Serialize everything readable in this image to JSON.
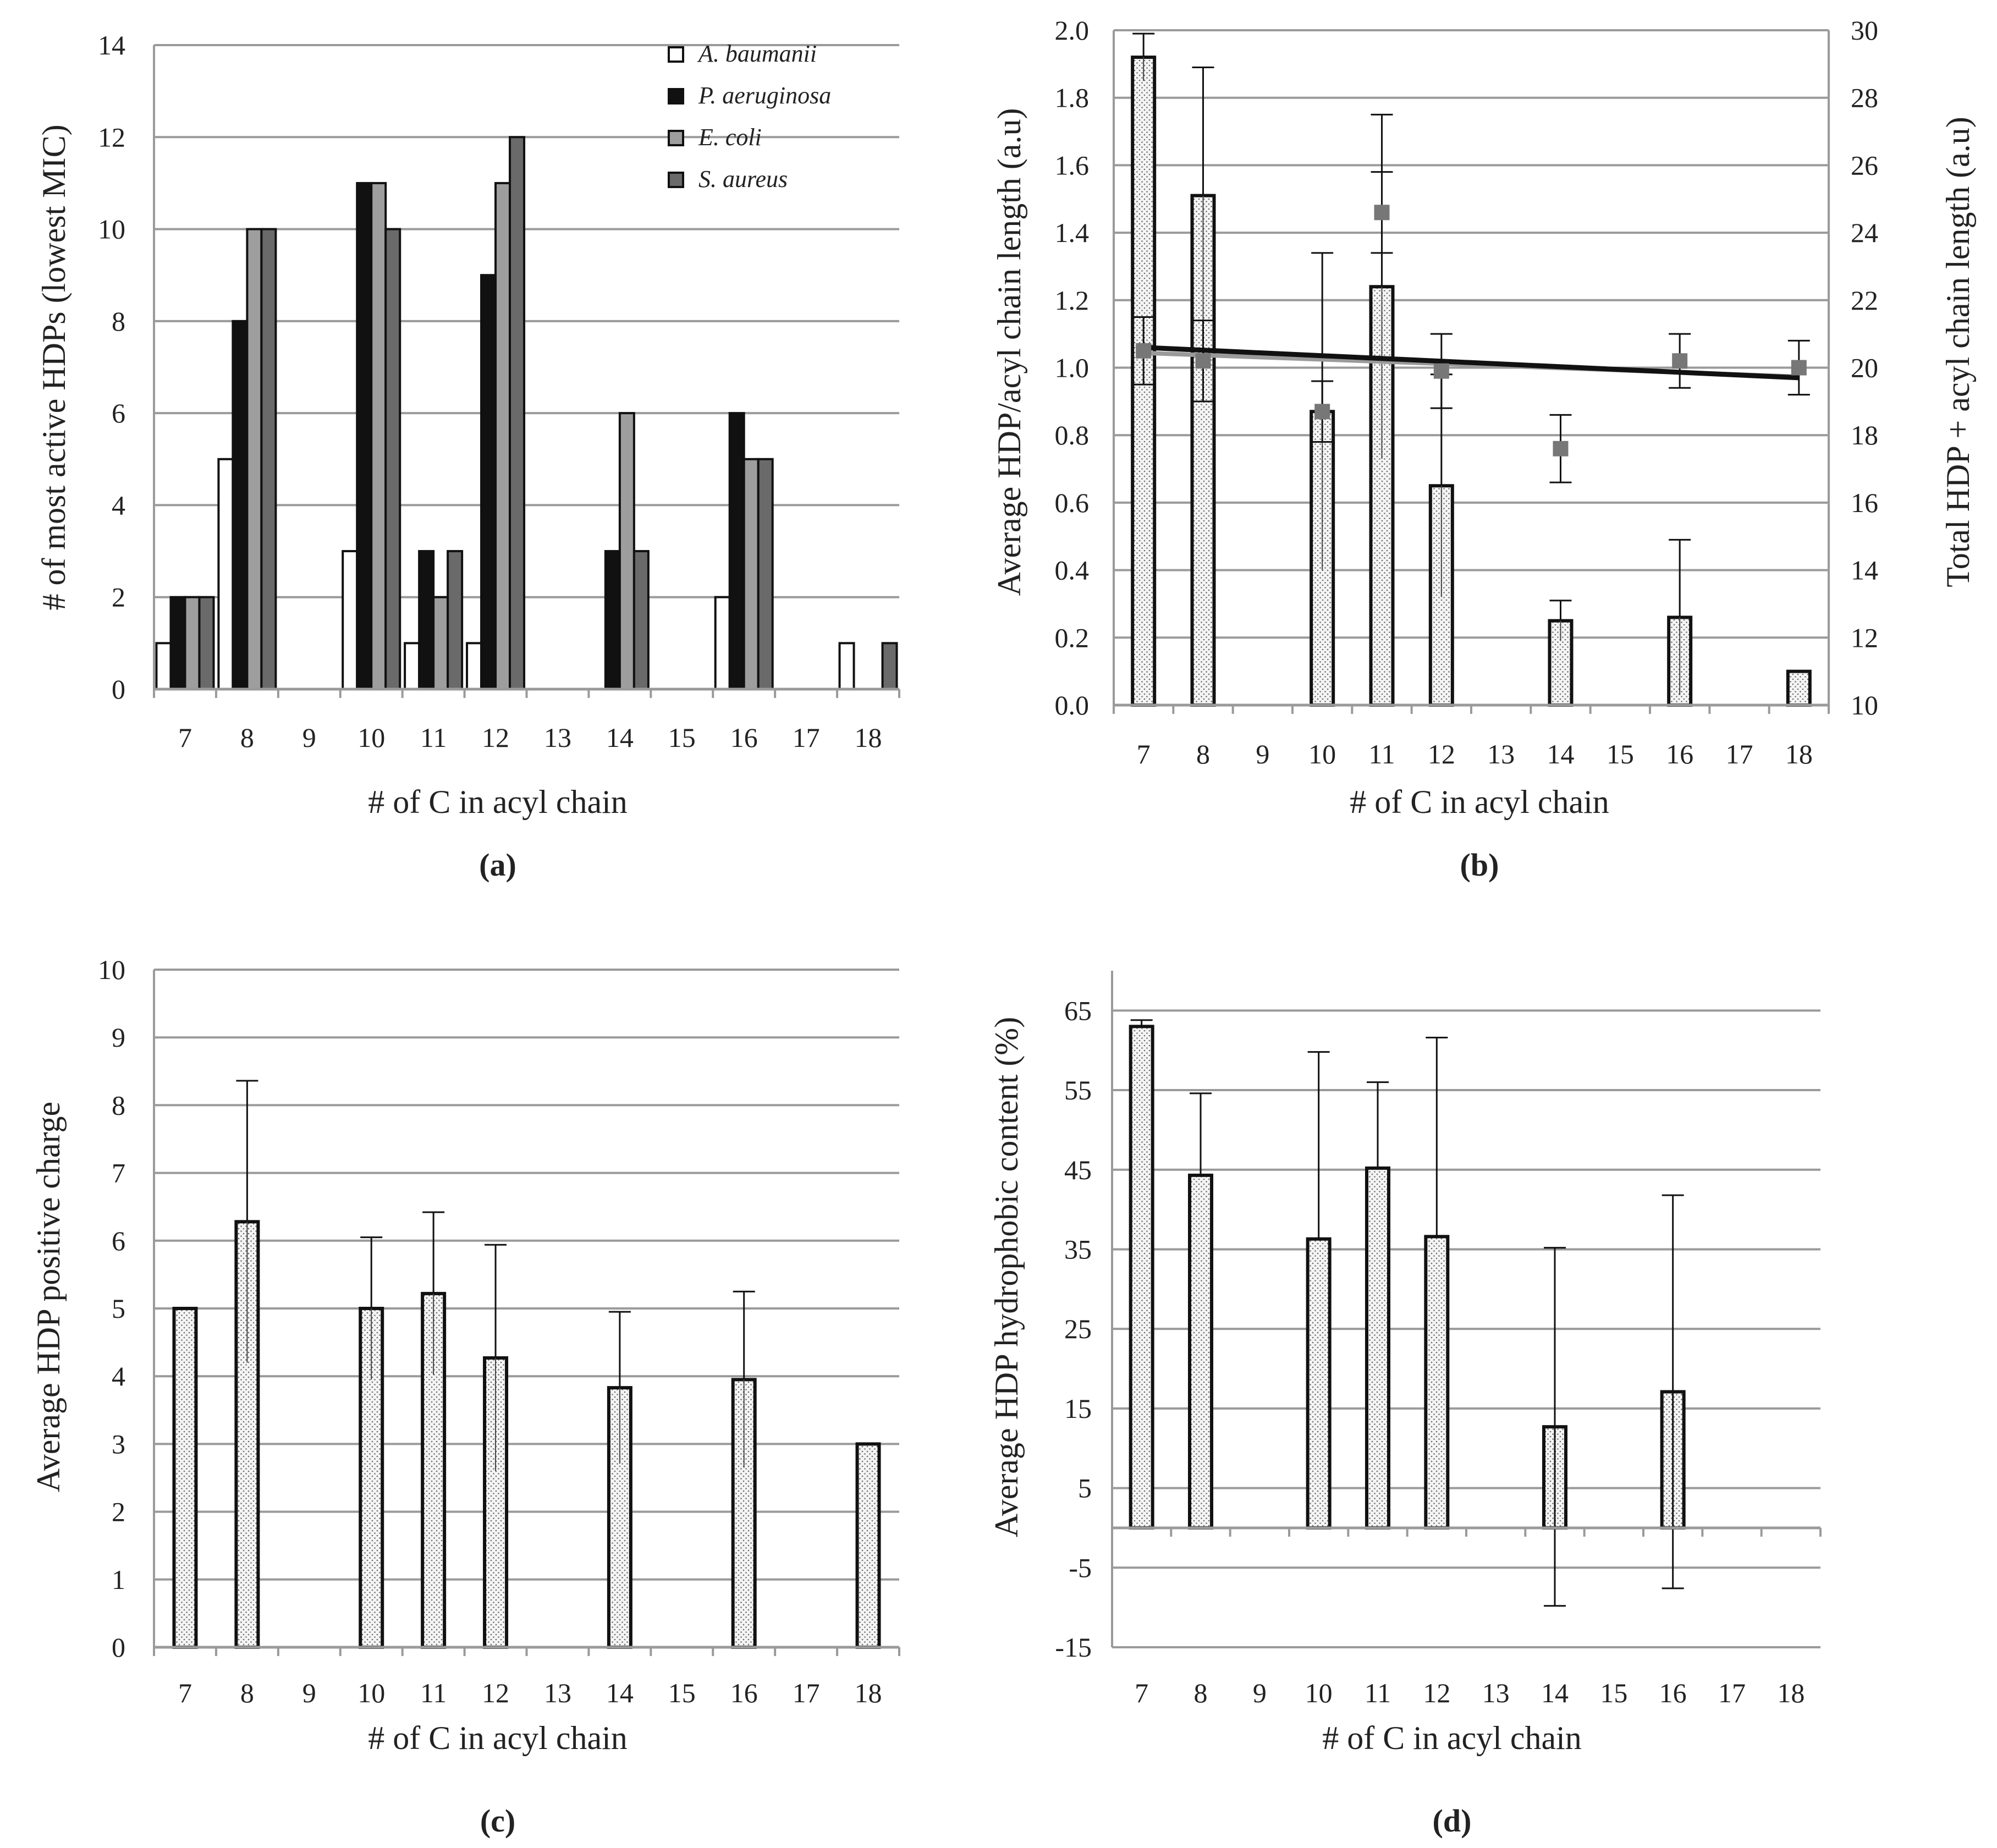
{
  "colors": {
    "ab": "#ffffff",
    "pa": "#111111",
    "ec": "#9e9e9e",
    "sa": "#6a6a6a",
    "grid": "#9a9a9a",
    "bar_fill": "#f2f2f2",
    "marker": "#777777",
    "trend_gray": "#9a9a9a",
    "trend_black": "#111111"
  },
  "chart_data": [
    {
      "id": "a",
      "panel_label": "(a)",
      "type": "bar",
      "title": "",
      "xlabel": "# of C in acyl chain",
      "ylabel": "# of most active HDPs (lowest MIC)",
      "ylim": [
        0,
        14
      ],
      "yticks": [
        "0",
        "2",
        "4",
        "6",
        "8",
        "10",
        "12",
        "14"
      ],
      "categories": [
        "7",
        "8",
        "9",
        "10",
        "11",
        "12",
        "13",
        "14",
        "15",
        "16",
        "17",
        "18"
      ],
      "legend_position": "top-right",
      "series": [
        {
          "name": "A. baumanii",
          "values": [
            1,
            5,
            0,
            3,
            1,
            1,
            0,
            0,
            0,
            2,
            0,
            1
          ]
        },
        {
          "name": "P. aeruginosa",
          "values": [
            2,
            8,
            0,
            11,
            3,
            9,
            0,
            3,
            0,
            6,
            0,
            0
          ]
        },
        {
          "name": "E. coli",
          "values": [
            2,
            10,
            0,
            11,
            2,
            11,
            0,
            6,
            0,
            5,
            0,
            0
          ]
        },
        {
          "name": "S. aureus",
          "values": [
            2,
            10,
            0,
            10,
            3,
            12,
            0,
            3,
            0,
            5,
            0,
            1
          ]
        }
      ]
    },
    {
      "id": "b",
      "panel_label": "(b)",
      "type": "bar",
      "title": "",
      "xlabel": "# of C in acyl chain",
      "ylabel": "Average HDP/acyl chain length (a.u)",
      "y2label": "Total HDP + acyl chain length (a.u)",
      "ylim": [
        0,
        2
      ],
      "y2lim": [
        10,
        30
      ],
      "yticks": [
        "0.0",
        "0.2",
        "0.4",
        "0.6",
        "0.8",
        "1.0",
        "1.2",
        "1.4",
        "1.6",
        "1.8",
        "2.0"
      ],
      "y2ticks": [
        "10",
        "12",
        "14",
        "16",
        "18",
        "20",
        "22",
        "24",
        "26",
        "28",
        "30"
      ],
      "categories": [
        "7",
        "8",
        "9",
        "10",
        "11",
        "12",
        "13",
        "14",
        "15",
        "16",
        "17",
        "18"
      ],
      "bars": [
        1.92,
        1.51,
        null,
        0.87,
        1.24,
        0.65,
        null,
        0.25,
        null,
        0.26,
        null,
        0.1
      ],
      "bar_error": [
        0.07,
        0.38,
        null,
        0.47,
        0.51,
        0.33,
        null,
        0.06,
        null,
        0.23,
        null,
        null
      ],
      "points_y2": [
        20.5,
        20.2,
        null,
        18.7,
        24.6,
        19.9,
        null,
        17.6,
        null,
        20.2,
        null,
        20.0
      ],
      "points_y2_error": [
        1.0,
        1.2,
        null,
        0.9,
        1.2,
        1.1,
        null,
        1.0,
        null,
        0.8,
        null,
        0.8
      ],
      "trend_y2": {
        "from": [
          7,
          20.6
        ],
        "to": [
          18,
          19.7
        ]
      }
    },
    {
      "id": "c",
      "panel_label": "(c)",
      "type": "bar",
      "title": "",
      "xlabel": "# of C in acyl chain",
      "ylabel": "Average HDP positive charge",
      "ylim": [
        0,
        10
      ],
      "yticks": [
        "0",
        "1",
        "2",
        "3",
        "4",
        "5",
        "6",
        "7",
        "8",
        "9",
        "10"
      ],
      "categories": [
        "7",
        "8",
        "9",
        "10",
        "11",
        "12",
        "13",
        "14",
        "15",
        "16",
        "17",
        "18"
      ],
      "bars": [
        5.0,
        6.28,
        null,
        5.0,
        5.22,
        4.27,
        null,
        3.83,
        null,
        3.95,
        null,
        3.0
      ],
      "bar_error": [
        null,
        2.08,
        null,
        1.05,
        1.2,
        1.67,
        null,
        1.12,
        null,
        1.3,
        null,
        null
      ]
    },
    {
      "id": "d",
      "panel_label": "(d)",
      "type": "bar",
      "title": "",
      "xlabel": "# of C in acyl chain",
      "ylabel": "Average HDP hydrophobic content (%)",
      "ylim": [
        -15,
        70
      ],
      "yticks": [
        "-15",
        "-5",
        "5",
        "15",
        "25",
        "35",
        "45",
        "55",
        "65"
      ],
      "categories": [
        "7",
        "8",
        "9",
        "10",
        "11",
        "12",
        "13",
        "14",
        "15",
        "16",
        "17",
        "18"
      ],
      "bars": [
        63.0,
        44.3,
        null,
        36.3,
        45.2,
        36.6,
        null,
        12.7,
        null,
        17.1,
        null,
        0
      ],
      "bar_error": [
        0.8,
        10.3,
        null,
        23.5,
        10.8,
        25.0,
        null,
        22.5,
        null,
        24.7,
        null,
        null
      ]
    }
  ]
}
